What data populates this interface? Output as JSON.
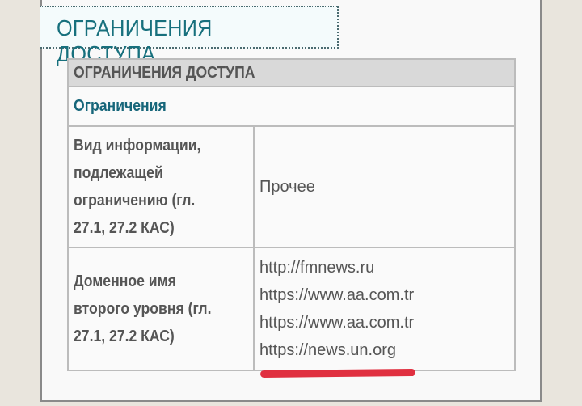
{
  "tab": {
    "title": "ОГРАНИЧЕНИЯ ДОСТУПА"
  },
  "table": {
    "header": "ОГРАНИЧЕНИЯ ДОСТУПА",
    "section": "Ограничения",
    "rows": [
      {
        "label_lines": [
          "Вид информации,",
          "подлежащей",
          "ограничению (гл.",
          "27.1, 27.2 КАС)"
        ],
        "values": [
          "Прочее"
        ]
      },
      {
        "label_lines": [
          "Доменное имя",
          "второго уровня (гл.",
          "27.1, 27.2 КАС)"
        ],
        "values": [
          "http://fmnews.ru",
          "https://www.aa.com.tr",
          "https://www.aa.com.tr",
          "https://news.un.org"
        ]
      }
    ]
  },
  "colors": {
    "accent": "#17707d",
    "highlight_mark": "#e03040"
  }
}
